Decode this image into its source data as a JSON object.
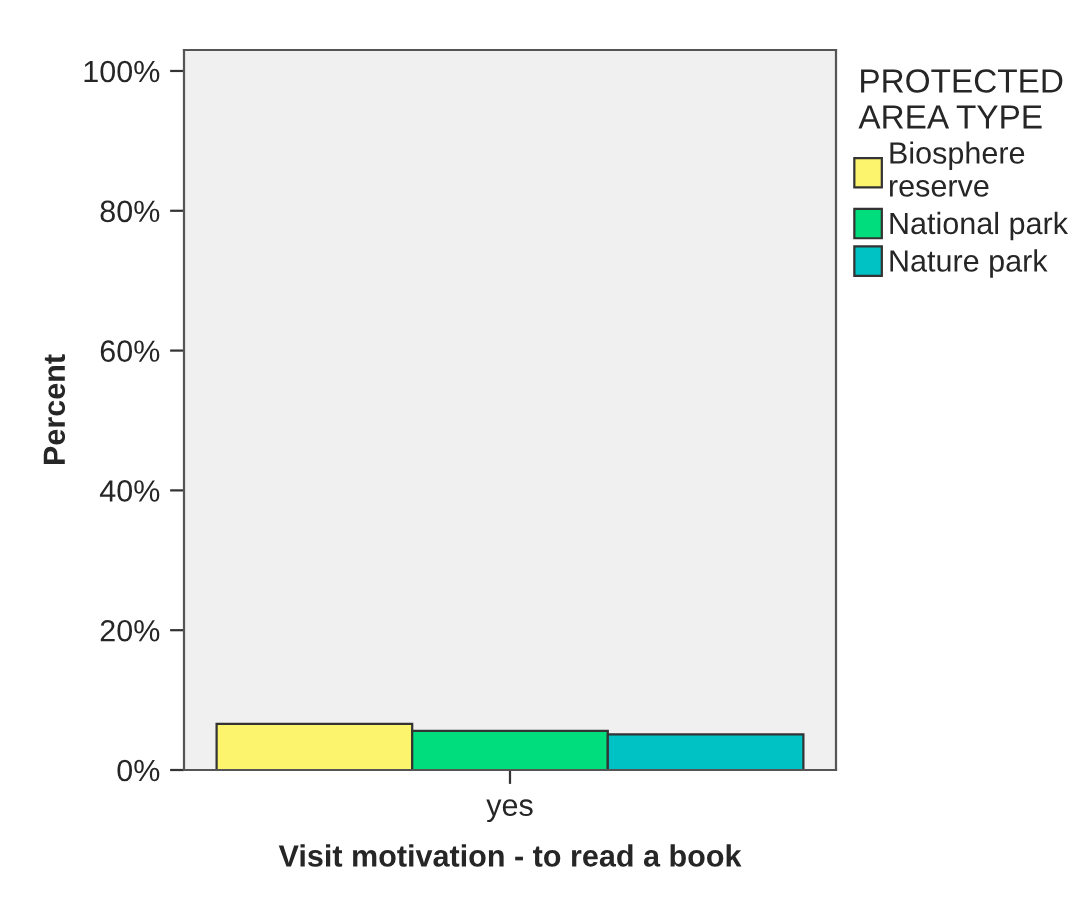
{
  "chart_data": {
    "type": "bar",
    "xlabel": "Visit motivation - to read a book",
    "ylabel": "Percent",
    "legend_title": "PROTECTED\nAREA TYPE",
    "categories": [
      "yes"
    ],
    "series": [
      {
        "name": "Biosphere\nreserve",
        "color": "#fcf46c",
        "values": [
          6.6
        ]
      },
      {
        "name": "National park",
        "color": "#00dd7c",
        "values": [
          5.6
        ]
      },
      {
        "name": "Nature park",
        "color": "#00c1c3",
        "values": [
          5.1
        ]
      }
    ],
    "ylim": [
      0,
      103
    ],
    "yticks": [
      {
        "value": 0,
        "label": "0%"
      },
      {
        "value": 20,
        "label": "20%"
      },
      {
        "value": 40,
        "label": "40%"
      },
      {
        "value": 60,
        "label": "60%"
      },
      {
        "value": 80,
        "label": "80%"
      },
      {
        "value": 100,
        "label": "100%"
      }
    ],
    "grid": false,
    "legend": "top right"
  }
}
